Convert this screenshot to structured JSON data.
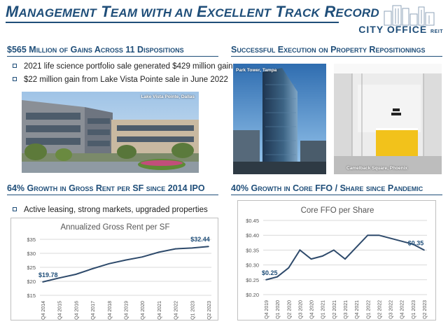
{
  "header": {
    "title_parts": [
      {
        "big": "M",
        "small": "ANAGEMENT"
      },
      {
        "big": "T",
        "small": "EAM WITH AN"
      },
      {
        "big": "E",
        "small": "XCELLENT"
      },
      {
        "big": "T",
        "small": "RACK"
      },
      {
        "big": "R",
        "small": "ECORD"
      }
    ],
    "logo_name": "CITY OFFICE",
    "logo_suffix": "REIT",
    "brand_color": "#1f4e79"
  },
  "dispositions": {
    "heading": "$565 Million of Gains Across 11 Dispositions",
    "bullets": [
      "2021 life science portfolio sale generated $429 million gain",
      "$22 million gain from Lake Vista Pointe sale in June 2022"
    ],
    "photo_caption": "Lake Vista Pointe, Dallas"
  },
  "repositionings": {
    "heading": "Successful Execution on Property Repositionings",
    "photos": [
      {
        "caption": "Park Tower, Tampa"
      },
      {
        "caption": "Camelback Square, Phoenix"
      }
    ]
  },
  "rent_section": {
    "heading": "64% Growth in Gross Rent per SF since 2014 IPO",
    "bullets": [
      "Active leasing, strong markets, upgraded properties"
    ]
  },
  "ffo_section": {
    "heading": "40% Growth in Core FFO / Share since Pandemic"
  },
  "chart_data": [
    {
      "type": "line",
      "title": "Annualized Gross Rent per SF",
      "x": [
        "Q4 2014",
        "Q4 2015",
        "Q4 2016",
        "Q4 2017",
        "Q4 2018",
        "Q4 2019",
        "Q4 2020",
        "Q4 2021",
        "Q4 2022",
        "Q1 2023",
        "Q2 2023"
      ],
      "series": [
        {
          "values": [
            19.78,
            21.2,
            22.5,
            24.5,
            26.3,
            27.6,
            28.7,
            30.4,
            31.6,
            31.9,
            32.44
          ]
        }
      ],
      "data_labels": [
        {
          "index": 0,
          "text": "$19.78"
        },
        {
          "index": 10,
          "text": "$32.44"
        }
      ],
      "yticks": [
        "$15",
        "$20",
        "$25",
        "$30",
        "$35"
      ],
      "ylim": [
        15,
        35
      ],
      "grid": true,
      "line_color": "#2e4a6b"
    },
    {
      "type": "line",
      "title": "Core FFO per Share",
      "x": [
        "Q4 2019",
        "Q1 2020",
        "Q2 2020",
        "Q3 2020",
        "Q4 2020",
        "Q1 2021",
        "Q2 2021",
        "Q3 2021",
        "Q4 2021",
        "Q1 2022",
        "Q2 2022",
        "Q3 2022",
        "Q4 2022",
        "Q1 2023",
        "Q2 2023"
      ],
      "series": [
        {
          "values": [
            0.25,
            0.26,
            0.29,
            0.35,
            0.32,
            0.33,
            0.35,
            0.32,
            0.36,
            0.4,
            0.4,
            0.39,
            0.38,
            0.37,
            0.35
          ]
        }
      ],
      "data_labels": [
        {
          "index": 0,
          "text": "$0.25"
        },
        {
          "index": 14,
          "text": "$0.35"
        }
      ],
      "yticks": [
        "$0.20",
        "$0.25",
        "$0.30",
        "$0.35",
        "$0.40",
        "$0.45"
      ],
      "ylim": [
        0.2,
        0.45
      ],
      "grid": true,
      "line_color": "#2e4a6b"
    }
  ]
}
